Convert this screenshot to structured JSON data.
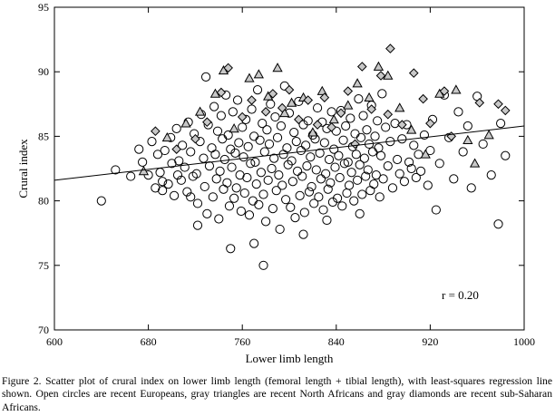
{
  "chart_data": {
    "type": "scatter",
    "xlabel": "Lower limb length",
    "ylabel": "Crural index",
    "xlim": [
      600,
      1000
    ],
    "ylim": [
      70,
      95
    ],
    "xticks": [
      600,
      680,
      760,
      840,
      920,
      1000
    ],
    "yticks": [
      70,
      75,
      80,
      85,
      90,
      95
    ],
    "grid": false,
    "annotation": "r = 0.20",
    "regression_line": {
      "x": [
        600,
        1000
      ],
      "y": [
        81.6,
        85.8
      ]
    },
    "marker_colors": {
      "outline": "#000000",
      "gray_fill": "#c8c8c8"
    },
    "series": [
      {
        "marker": "open-circle",
        "points": [
          [
            640,
            80.0
          ],
          [
            652,
            82.4
          ],
          [
            665,
            81.9
          ],
          [
            672,
            84.0
          ],
          [
            675,
            83.0
          ],
          [
            680,
            82.0
          ],
          [
            683,
            84.6
          ],
          [
            686,
            81.0
          ],
          [
            688,
            83.6
          ],
          [
            690,
            82.2
          ],
          [
            692,
            80.8
          ],
          [
            694,
            83.9
          ],
          [
            697,
            81.3
          ],
          [
            699,
            84.9
          ],
          [
            700,
            82.9
          ],
          [
            702,
            80.4
          ],
          [
            704,
            85.6
          ],
          [
            706,
            83.1
          ],
          [
            708,
            81.6
          ],
          [
            709,
            84.3
          ],
          [
            711,
            82.6
          ],
          [
            713,
            80.7
          ],
          [
            714,
            86.1
          ],
          [
            716,
            83.8
          ],
          [
            718,
            81.9
          ],
          [
            719,
            85.2
          ],
          [
            721,
            82.1
          ],
          [
            722,
            79.8
          ],
          [
            724,
            84.6
          ],
          [
            725,
            86.7
          ],
          [
            727,
            83.3
          ],
          [
            728,
            81.1
          ],
          [
            729,
            89.6
          ],
          [
            730,
            79.0
          ],
          [
            731,
            85.9
          ],
          [
            732,
            82.7
          ],
          [
            734,
            84.1
          ],
          [
            735,
            80.3
          ],
          [
            736,
            87.3
          ],
          [
            737,
            83.6
          ],
          [
            738,
            81.7
          ],
          [
            739,
            85.4
          ],
          [
            740,
            78.6
          ],
          [
            741,
            82.3
          ],
          [
            742,
            86.6
          ],
          [
            743,
            84.8
          ],
          [
            744,
            80.9
          ],
          [
            745,
            83.2
          ],
          [
            746,
            88.2
          ],
          [
            747,
            81.4
          ],
          [
            748,
            85.1
          ],
          [
            749,
            79.6
          ],
          [
            750,
            84.0
          ],
          [
            751,
            82.6
          ],
          [
            752,
            86.9
          ],
          [
            753,
            80.2
          ],
          [
            754,
            83.7
          ],
          [
            755,
            81.0
          ],
          [
            756,
            87.8
          ],
          [
            757,
            84.5
          ],
          [
            758,
            82.0
          ],
          [
            759,
            79.2
          ],
          [
            760,
            85.7
          ],
          [
            761,
            83.4
          ],
          [
            762,
            80.6
          ],
          [
            763,
            86.3
          ],
          [
            764,
            81.8
          ],
          [
            765,
            84.2
          ],
          [
            766,
            78.9
          ],
          [
            767,
            82.9
          ],
          [
            768,
            87.1
          ],
          [
            769,
            80.0
          ],
          [
            770,
            85.0
          ],
          [
            771,
            83.0
          ],
          [
            772,
            81.3
          ],
          [
            773,
            88.6
          ],
          [
            774,
            79.7
          ],
          [
            775,
            84.7
          ],
          [
            776,
            82.2
          ],
          [
            777,
            86.0
          ],
          [
            778,
            80.5
          ],
          [
            779,
            83.8
          ],
          [
            780,
            78.4
          ],
          [
            781,
            85.5
          ],
          [
            782,
            81.6
          ],
          [
            783,
            84.4
          ],
          [
            784,
            87.5
          ],
          [
            785,
            82.5
          ],
          [
            786,
            79.4
          ],
          [
            787,
            83.3
          ],
          [
            788,
            86.5
          ],
          [
            789,
            80.8
          ],
          [
            790,
            84.9
          ],
          [
            791,
            82.0
          ],
          [
            792,
            77.8
          ],
          [
            793,
            85.8
          ],
          [
            794,
            81.2
          ],
          [
            795,
            83.6
          ],
          [
            796,
            88.9
          ],
          [
            797,
            80.1
          ],
          [
            798,
            84.1
          ],
          [
            799,
            82.8
          ],
          [
            800,
            86.8
          ],
          [
            801,
            79.5
          ],
          [
            802,
            83.1
          ],
          [
            803,
            81.5
          ],
          [
            804,
            85.3
          ],
          [
            805,
            78.7
          ],
          [
            806,
            84.6
          ],
          [
            807,
            82.3
          ],
          [
            808,
            87.7
          ],
          [
            809,
            80.4
          ],
          [
            810,
            83.9
          ],
          [
            811,
            81.9
          ],
          [
            812,
            85.9
          ],
          [
            813,
            79.1
          ],
          [
            814,
            84.3
          ],
          [
            815,
            82.7
          ],
          [
            816,
            86.2
          ],
          [
            817,
            80.7
          ],
          [
            818,
            83.4
          ],
          [
            819,
            81.1
          ],
          [
            820,
            85.1
          ],
          [
            821,
            79.8
          ],
          [
            822,
            84.8
          ],
          [
            823,
            82.4
          ],
          [
            824,
            87.2
          ],
          [
            825,
            80.3
          ],
          [
            826,
            83.7
          ],
          [
            827,
            81.7
          ],
          [
            828,
            86.1
          ],
          [
            829,
            79.3
          ],
          [
            830,
            84.5
          ],
          [
            831,
            82.1
          ],
          [
            832,
            85.6
          ],
          [
            833,
            80.9
          ],
          [
            834,
            83.2
          ],
          [
            835,
            81.4
          ],
          [
            836,
            86.9
          ],
          [
            837,
            79.9
          ],
          [
            838,
            84.0
          ],
          [
            839,
            82.6
          ],
          [
            840,
            85.4
          ],
          [
            841,
            80.2
          ],
          [
            842,
            83.5
          ],
          [
            843,
            81.8
          ],
          [
            844,
            87.0
          ],
          [
            845,
            79.6
          ],
          [
            846,
            84.7
          ],
          [
            847,
            82.9
          ],
          [
            848,
            85.8
          ],
          [
            849,
            80.6
          ],
          [
            850,
            83.0
          ],
          [
            851,
            81.2
          ],
          [
            852,
            86.4
          ],
          [
            853,
            82.2
          ],
          [
            854,
            84.2
          ],
          [
            855,
            80.0
          ],
          [
            856,
            85.2
          ],
          [
            857,
            83.6
          ],
          [
            858,
            81.6
          ],
          [
            859,
            87.9
          ],
          [
            860,
            82.8
          ],
          [
            861,
            84.9
          ],
          [
            862,
            80.5
          ],
          [
            863,
            86.6
          ],
          [
            864,
            83.3
          ],
          [
            865,
            81.9
          ],
          [
            866,
            85.5
          ],
          [
            867,
            82.4
          ],
          [
            868,
            84.4
          ],
          [
            869,
            80.8
          ],
          [
            870,
            87.4
          ],
          [
            871,
            83.8
          ],
          [
            872,
            81.3
          ],
          [
            873,
            85.0
          ],
          [
            874,
            82.0
          ],
          [
            875,
            86.2
          ],
          [
            876,
            84.1
          ],
          [
            877,
            80.3
          ],
          [
            878,
            83.5
          ],
          [
            879,
            88.3
          ],
          [
            880,
            81.7
          ],
          [
            882,
            85.7
          ],
          [
            884,
            82.7
          ],
          [
            886,
            84.6
          ],
          [
            888,
            81.0
          ],
          [
            890,
            86.0
          ],
          [
            892,
            83.2
          ],
          [
            894,
            82.1
          ],
          [
            896,
            84.8
          ],
          [
            898,
            81.5
          ],
          [
            900,
            85.9
          ],
          [
            902,
            83.0
          ],
          [
            904,
            82.5
          ],
          [
            906,
            84.3
          ],
          [
            908,
            81.8
          ],
          [
            910,
            83.6
          ],
          [
            912,
            82.3
          ],
          [
            915,
            85.1
          ],
          [
            918,
            81.2
          ],
          [
            920,
            83.9
          ],
          [
            922,
            86.3
          ],
          [
            925,
            79.3
          ],
          [
            928,
            82.9
          ],
          [
            932,
            88.2
          ],
          [
            936,
            84.9
          ],
          [
            940,
            81.7
          ],
          [
            944,
            86.9
          ],
          [
            948,
            83.8
          ],
          [
            952,
            85.8
          ],
          [
            955,
            81.0
          ],
          [
            960,
            88.1
          ],
          [
            965,
            84.4
          ],
          [
            972,
            82.0
          ],
          [
            978,
            78.2
          ],
          [
            980,
            86.0
          ],
          [
            984,
            83.5
          ],
          [
            750,
            76.3
          ],
          [
            778,
            75.0
          ],
          [
            770,
            76.7
          ],
          [
            812,
            77.4
          ],
          [
            860,
            79.0
          ],
          [
            832,
            78.5
          ],
          [
            716,
            80.3
          ],
          [
            722,
            78.1
          ],
          [
            692,
            81.5
          ],
          [
            705,
            82.0
          ]
        ]
      },
      {
        "marker": "gray-triangle",
        "points": [
          [
            676,
            82.3
          ],
          [
            696,
            84.9
          ],
          [
            712,
            86.0
          ],
          [
            724,
            86.9
          ],
          [
            737,
            88.3
          ],
          [
            744,
            90.1
          ],
          [
            753,
            85.6
          ],
          [
            766,
            89.5
          ],
          [
            774,
            89.8
          ],
          [
            782,
            88.1
          ],
          [
            790,
            90.3
          ],
          [
            796,
            86.8
          ],
          [
            802,
            87.6
          ],
          [
            812,
            88.0
          ],
          [
            820,
            85.3
          ],
          [
            828,
            88.5
          ],
          [
            838,
            86.3
          ],
          [
            850,
            87.4
          ],
          [
            858,
            89.1
          ],
          [
            868,
            88.0
          ],
          [
            876,
            90.4
          ],
          [
            884,
            89.7
          ],
          [
            894,
            87.2
          ],
          [
            904,
            85.5
          ],
          [
            916,
            83.6
          ],
          [
            928,
            88.3
          ],
          [
            942,
            88.6
          ],
          [
            952,
            84.7
          ],
          [
            958,
            82.9
          ],
          [
            970,
            85.1
          ]
        ]
      },
      {
        "marker": "gray-diamond",
        "points": [
          [
            686,
            85.4
          ],
          [
            704,
            84.0
          ],
          [
            720,
            84.8
          ],
          [
            730,
            86.1
          ],
          [
            742,
            88.4
          ],
          [
            748,
            90.3
          ],
          [
            760,
            86.5
          ],
          [
            768,
            87.8
          ],
          [
            780,
            86.9
          ],
          [
            786,
            88.3
          ],
          [
            794,
            87.2
          ],
          [
            800,
            88.6
          ],
          [
            808,
            86.3
          ],
          [
            816,
            87.8
          ],
          [
            824,
            85.9
          ],
          [
            830,
            88.0
          ],
          [
            836,
            85.7
          ],
          [
            844,
            86.8
          ],
          [
            850,
            88.5
          ],
          [
            856,
            84.4
          ],
          [
            862,
            90.4
          ],
          [
            870,
            87.1
          ],
          [
            878,
            89.7
          ],
          [
            884,
            86.7
          ],
          [
            886,
            91.8
          ],
          [
            896,
            85.9
          ],
          [
            906,
            89.9
          ],
          [
            914,
            87.9
          ],
          [
            920,
            86.0
          ],
          [
            932,
            88.5
          ],
          [
            938,
            85.0
          ],
          [
            962,
            87.6
          ],
          [
            978,
            87.5
          ],
          [
            984,
            87.0
          ]
        ]
      }
    ]
  },
  "caption": {
    "figure_label": "Figure 2.",
    "text": "Scatter plot of crural index on lower limb length (femoral length + tibial length), with least-squares regression line shown. Open circles are recent Europeans, gray triangles are recent North Africans and gray diamonds are recent sub-Saharan Africans."
  }
}
